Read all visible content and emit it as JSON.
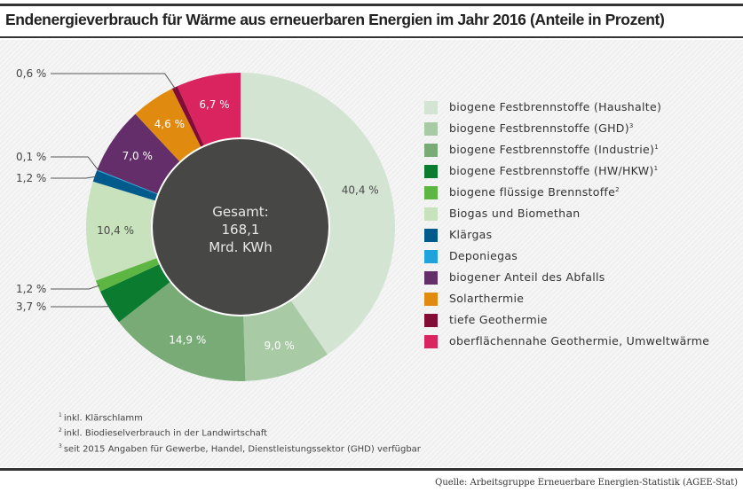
{
  "title": "Endenergieverbrauch für Wärme aus erneuerbaren Energien im Jahr 2016 (Anteile in Prozent)",
  "chart_data": {
    "type": "pie",
    "variant": "donut",
    "title": "Endenergieverbrauch für Wärme aus erneuerbaren Energien im Jahr 2016 (Anteile in Prozent)",
    "center_label": [
      "Gesamt:",
      "168,1",
      "Mrd. KWh"
    ],
    "total": 168.1,
    "unit": "Mrd. KWh",
    "start": "top",
    "direction": "clockwise",
    "legend_position": "right",
    "slices": [
      {
        "name": "biogene Festbrennstoffe (Haushalte)",
        "footnote": "",
        "value": 40.4,
        "label": "40,4 %",
        "color": "#d3e4d2",
        "label_color": "#4a4a4a",
        "callout": false
      },
      {
        "name": "biogene Festbrennstoffe (GHD)",
        "footnote": "3",
        "value": 9.0,
        "label": "9,0 %",
        "color": "#a8cba5",
        "label_color": "#ffffff",
        "callout": false
      },
      {
        "name": "biogene Festbrennstoffe (Industrie)",
        "footnote": "1",
        "value": 14.9,
        "label": "14,9 %",
        "color": "#79ab76",
        "label_color": "#ffffff",
        "callout": false
      },
      {
        "name": "biogene Festbrennstoffe (HW/HKW)",
        "footnote": "1",
        "value": 3.7,
        "label": "3,7 %",
        "color": "#0a7b2f",
        "label_color": "#4a4a4a",
        "callout": true
      },
      {
        "name": "biogene flüssige Brennstoffe",
        "footnote": "2",
        "value": 1.2,
        "label": "1,2 %",
        "color": "#5db542",
        "label_color": "#4a4a4a",
        "callout": true
      },
      {
        "name": "Biogas und Biomethan",
        "footnote": "",
        "value": 10.4,
        "label": "10,4 %",
        "color": "#c8e2bd",
        "label_color": "#4a4a4a",
        "callout": false
      },
      {
        "name": "Klärgas",
        "footnote": "",
        "value": 1.2,
        "label": "1,2 %",
        "color": "#005b8c",
        "label_color": "#4a4a4a",
        "callout": true
      },
      {
        "name": "Deponiegas",
        "footnote": "",
        "value": 0.1,
        "label": "0,1 %",
        "color": "#1fa3dc",
        "label_color": "#4a4a4a",
        "callout": true
      },
      {
        "name": "biogener Anteil des Abfalls",
        "footnote": "",
        "value": 7.0,
        "label": "7,0 %",
        "color": "#632e6a",
        "label_color": "#ffffff",
        "callout": false
      },
      {
        "name": "Solarthermie",
        "footnote": "",
        "value": 4.6,
        "label": "4,6 %",
        "color": "#e08b0f",
        "label_color": "#ffffff",
        "callout": false
      },
      {
        "name": "tiefe Geothermie",
        "footnote": "",
        "value": 0.6,
        "label": "0,6 %",
        "color": "#830c36",
        "label_color": "#4a4a4a",
        "callout": true
      },
      {
        "name": "oberflächennahe Geothermie, Umweltwärme",
        "footnote": "",
        "value": 6.7,
        "label": "6,7 %",
        "color": "#d9245f",
        "label_color": "#ffffff",
        "callout": false
      }
    ]
  },
  "legend": [
    {
      "label": "biogene Festbrennstoffe (Haushalte)",
      "sup": "",
      "color": "#d3e4d2"
    },
    {
      "label": "biogene Festbrennstoffe (GHD)",
      "sup": "3",
      "color": "#a8cba5"
    },
    {
      "label": "biogene Festbrennstoffe (Industrie)",
      "sup": "1",
      "color": "#79ab76"
    },
    {
      "label": "biogene Festbrennstoffe (HW/HKW)",
      "sup": "1",
      "color": "#0a7b2f"
    },
    {
      "label": "biogene flüssige Brennstoffe",
      "sup": "2",
      "color": "#5db542"
    },
    {
      "label": "Biogas und Biomethan",
      "sup": "",
      "color": "#c8e2bd"
    },
    {
      "label": "Klärgas",
      "sup": "",
      "color": "#005b8c"
    },
    {
      "label": "Deponiegas",
      "sup": "",
      "color": "#1fa3dc"
    },
    {
      "label": "biogener Anteil des Abfalls",
      "sup": "",
      "color": "#632e6a"
    },
    {
      "label": "Solarthermie",
      "sup": "",
      "color": "#e08b0f"
    },
    {
      "label": "tiefe Geothermie",
      "sup": "",
      "color": "#830c36"
    },
    {
      "label": "oberflächennahe Geothermie, Umweltwärme",
      "sup": "",
      "color": "#d9245f"
    }
  ],
  "footnotes": [
    {
      "mark": "1",
      "text": "inkl. Klärschlamm"
    },
    {
      "mark": "2",
      "text": "inkl. Biodieselverbrauch in der Landwirtschaft"
    },
    {
      "mark": "3",
      "text": "seit 2015 Angaben für Gewerbe, Handel, Dienstleistungssektor (GHD) verfügbar"
    }
  ],
  "source": "Quelle: Arbeitsgruppe Erneuerbare Energien-Statistik (AGEE-Stat)",
  "colors": {
    "center_fill": "#474746",
    "rule": "#333333"
  }
}
